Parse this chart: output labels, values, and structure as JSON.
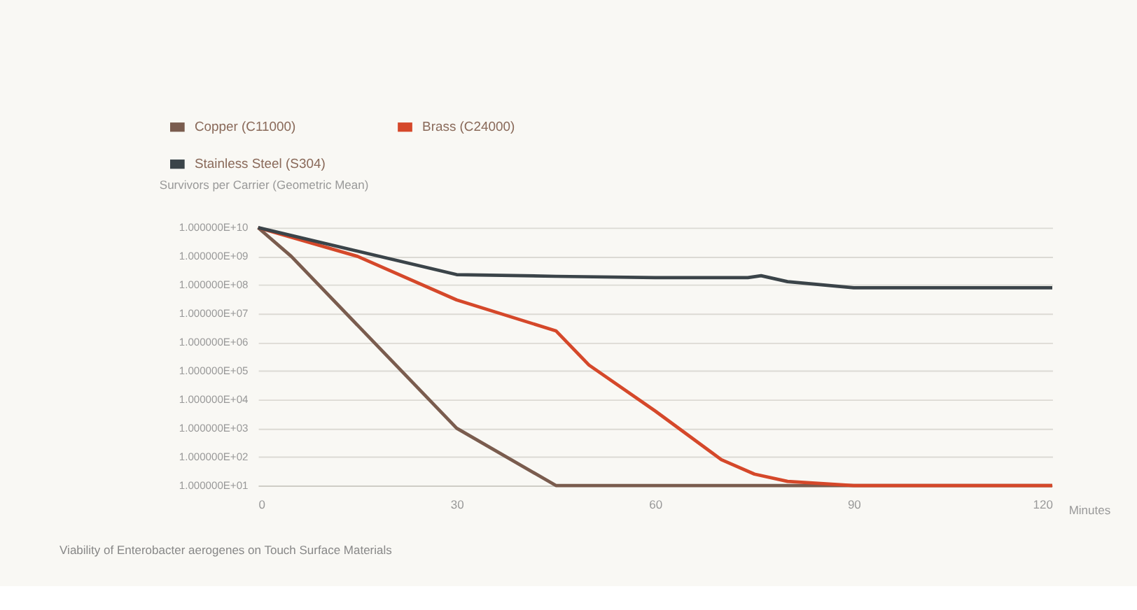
{
  "chart_data": {
    "type": "line",
    "title": "Viability of Enterobacter aerogenes on Touch Surface Materials",
    "xlabel": "Minutes",
    "ylabel": "Survivors per Carrier (Geometric Mean)",
    "series": [
      {
        "name": "Copper (C11000)",
        "color": "#7a5c4e",
        "x": [
          0,
          5,
          30,
          45,
          120
        ],
        "values": [
          10000000000,
          1000000000,
          1000,
          10,
          10
        ]
      },
      {
        "name": "Brass (C24000)",
        "color": "#d5482a",
        "x": [
          0,
          15,
          30,
          45,
          50,
          60,
          70,
          75,
          80,
          90,
          120
        ],
        "values": [
          10000000000,
          1000000000,
          30000000,
          2500000,
          160000,
          4000,
          80,
          25,
          14,
          10,
          10
        ]
      },
      {
        "name": "Stainless Steel (S304)",
        "color": "#3b4449",
        "x": [
          0,
          30,
          45,
          60,
          74,
          76,
          80,
          90,
          120
        ],
        "values": [
          10000000000,
          230000000,
          200000000,
          180000000,
          180000000,
          210000000,
          130000000,
          80000000,
          80000000
        ]
      }
    ],
    "log": "y",
    "xlim": [
      0,
      120
    ],
    "xticks": [
      0,
      30,
      60,
      90,
      120
    ],
    "ylim": [
      10,
      10000000000
    ],
    "yticks": [
      {
        "value": 10,
        "label": "1.000000E+01"
      },
      {
        "value": 100,
        "label": "1.000000E+02"
      },
      {
        "value": 1000,
        "label": "1.000000E+03"
      },
      {
        "value": 10000,
        "label": "1.000000E+04"
      },
      {
        "value": 100000,
        "label": "1.000000E+05"
      },
      {
        "value": 1000000,
        "label": "1.000000E+06"
      },
      {
        "value": 10000000,
        "label": "1.000000E+07"
      },
      {
        "value": 100000000,
        "label": "1.000000E+08"
      },
      {
        "value": 1000000000,
        "label": "1.000000E+09"
      },
      {
        "value": 10000000000,
        "label": "1.000000E+10"
      }
    ],
    "grid": "y",
    "legend": "top left",
    "marker": "none",
    "line_style": "solid"
  }
}
